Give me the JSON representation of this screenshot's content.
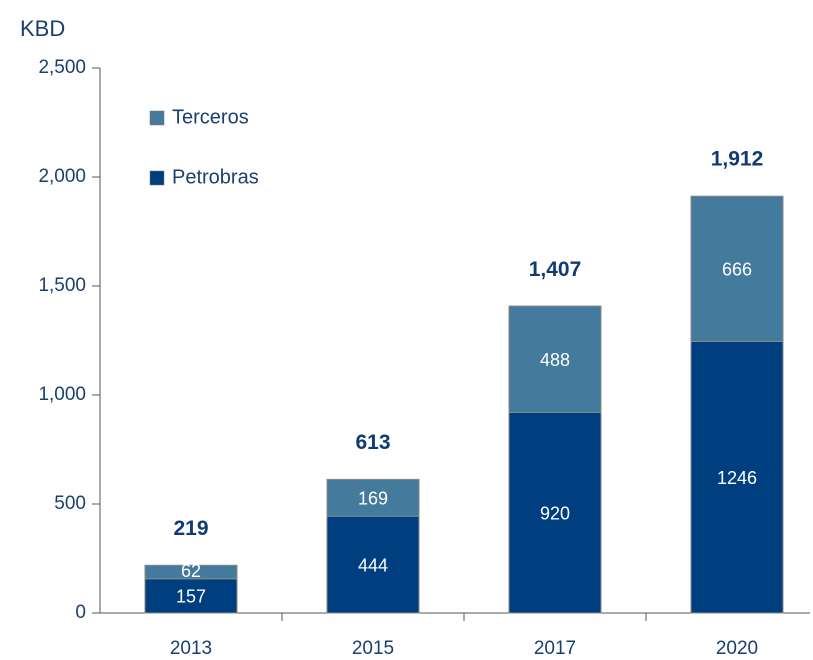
{
  "chart_data": {
    "type": "stacked_bar",
    "y_axis_label": "KBD",
    "categories": [
      "2013",
      "2015",
      "2017",
      "2020"
    ],
    "series": [
      {
        "name": "Petrobras",
        "color": "#003f7f",
        "values": [
          157,
          444,
          920,
          1246
        ]
      },
      {
        "name": "Terceros",
        "color": "#447a9c",
        "values": [
          62,
          169,
          488,
          666
        ]
      }
    ],
    "totals": [
      219,
      613,
      1407,
      1912
    ],
    "total_labels": [
      "219",
      "613",
      "1,407",
      "1,912"
    ],
    "ylim": [
      0,
      2500
    ],
    "yticks": [
      0,
      500,
      {
        "value": 1000,
        "label": "1,000"
      },
      {
        "value": 1500,
        "label": "1,500"
      },
      {
        "value": 2000,
        "label": "2,000"
      },
      {
        "value": 2500,
        "label": "2,500"
      }
    ],
    "legend": "upper left"
  }
}
